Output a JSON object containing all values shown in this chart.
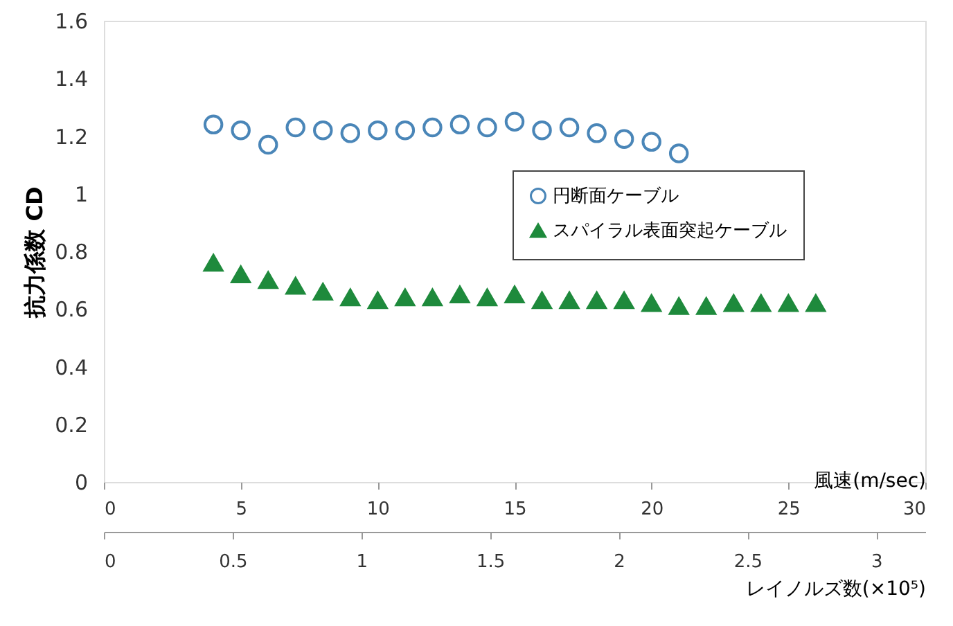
{
  "chart_data": {
    "type": "scatter",
    "ylabel": "抗力係数 CD",
    "xlabel": "風速(m/sec)",
    "x2label": "レイノルズ数(×10⁵)",
    "xlim": [
      0,
      30
    ],
    "xticks": [
      0,
      5,
      10,
      15,
      20,
      25,
      30
    ],
    "x2lim": [
      0,
      3.19
    ],
    "x2ticks": [
      0,
      0.5,
      1,
      1.5,
      2,
      2.5,
      3
    ],
    "ylim": [
      0,
      1.6
    ],
    "yticks": [
      0,
      0.2,
      0.4,
      0.6,
      0.8,
      1,
      1.2,
      1.4,
      1.6
    ],
    "grid": false,
    "legend": "right",
    "series": [
      {
        "name": "円断面ケーブル",
        "color": "#4a86b8",
        "marker": "circle",
        "x": [
          4,
          5,
          6,
          7,
          8,
          9,
          10,
          11,
          12,
          13,
          14,
          15,
          16,
          17,
          18,
          19,
          20,
          21
        ],
        "values": [
          1.24,
          1.22,
          1.17,
          1.23,
          1.22,
          1.21,
          1.22,
          1.22,
          1.23,
          1.24,
          1.23,
          1.25,
          1.22,
          1.23,
          1.21,
          1.19,
          1.18,
          1.14
        ]
      },
      {
        "name": "スパイラル表面突起ケーブル",
        "color": "#1e8a3c",
        "marker": "triangle",
        "x": [
          4,
          5,
          6,
          7,
          8,
          9,
          10,
          11,
          12,
          13,
          14,
          15,
          16,
          17,
          18,
          19,
          20,
          21,
          22,
          23,
          24,
          25,
          26
        ],
        "values": [
          0.76,
          0.72,
          0.7,
          0.68,
          0.66,
          0.64,
          0.63,
          0.64,
          0.64,
          0.65,
          0.64,
          0.65,
          0.63,
          0.63,
          0.63,
          0.63,
          0.62,
          0.61,
          0.61,
          0.62,
          0.62,
          0.62,
          0.62
        ]
      }
    ]
  }
}
